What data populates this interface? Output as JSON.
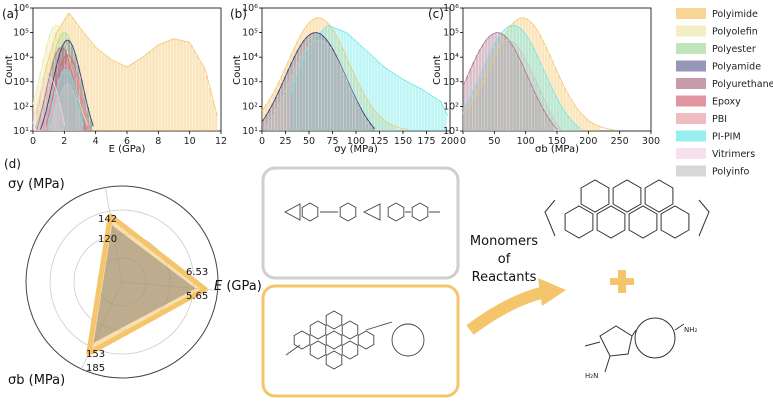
{
  "chart_data": [
    {
      "type": "histogram",
      "panel": "(a)",
      "xlabel": "E (GPa)",
      "ylabel": "Count",
      "xlim": [
        0,
        12
      ],
      "x_ticks": [
        "0",
        "2",
        "4",
        "6",
        "8",
        "10",
        "12"
      ],
      "ylim_log": [
        1,
        1000000
      ],
      "y_ticks": [
        "10¹",
        "10²",
        "10³",
        "10⁴",
        "10⁵",
        "10⁶"
      ],
      "scale": "log",
      "series": [
        {
          "name": "Polyimide",
          "peak": 2.3,
          "curve": [
            [
              0.2,
              1.5
            ],
            [
              0.8,
              3.5
            ],
            [
              1.5,
              5.0
            ],
            [
              2.3,
              5.8
            ],
            [
              3.0,
              5.2
            ],
            [
              4.0,
              4.4
            ],
            [
              5.0,
              3.9
            ],
            [
              6.0,
              3.6
            ],
            [
              7.0,
              4.0
            ],
            [
              8.0,
              4.5
            ],
            [
              9.0,
              4.75
            ],
            [
              10.0,
              4.6
            ],
            [
              11.0,
              3.5
            ],
            [
              11.8,
              1.5
            ]
          ]
        },
        {
          "name": "Polyolefin",
          "peak": 1.5
        },
        {
          "name": "Polyester",
          "peak": 2.0
        },
        {
          "name": "Polyamide",
          "peak": 2.2
        },
        {
          "name": "Polyurethane",
          "peak": 1.8
        },
        {
          "name": "Epoxy",
          "peak": 2.2
        },
        {
          "name": "PBI",
          "peak": 2.3
        },
        {
          "name": "PI-PIM",
          "peak": 2.1
        },
        {
          "name": "Vitrimers",
          "peak": 1.0
        },
        {
          "name": "Polyinfo",
          "peak": 2.2
        }
      ]
    },
    {
      "type": "histogram",
      "panel": "(b)",
      "xlabel": "σy (MPa)",
      "ylabel": "Count",
      "xlim": [
        0,
        200
      ],
      "x_ticks": [
        "0",
        "25",
        "50",
        "75",
        "100",
        "125",
        "150",
        "175",
        "200"
      ],
      "ylim_log": [
        1,
        1000000
      ],
      "y_ticks": [
        "10¹",
        "10²",
        "10³",
        "10⁴",
        "10⁵",
        "10⁶"
      ],
      "scale": "log",
      "series": [
        {
          "name": "Polyimide",
          "peak": 60
        },
        {
          "name": "PI-PIM",
          "peak": 80,
          "curve": [
            [
              30,
              2.5
            ],
            [
              50,
              4.5
            ],
            [
              70,
              5.3
            ],
            [
              90,
              5.0
            ],
            [
              110,
              4.3
            ],
            [
              130,
              3.6
            ],
            [
              150,
              3.1
            ],
            [
              170,
              2.7
            ],
            [
              190,
              2.2
            ],
            [
              198,
              1.6
            ]
          ]
        },
        {
          "name": "Polyamide",
          "peak": 57
        },
        {
          "name": "Polyinfo",
          "peak": 60
        }
      ]
    },
    {
      "type": "histogram",
      "panel": "(c)",
      "xlabel": "σb (MPa)",
      "ylabel": "Count",
      "xlim": [
        0,
        300
      ],
      "x_ticks": [
        "0",
        "50",
        "100",
        "150",
        "200",
        "250",
        "300"
      ],
      "ylim_log": [
        1,
        1000000
      ],
      "y_ticks": [
        "10¹",
        "10²",
        "10³",
        "10⁴",
        "10⁵",
        "10⁶"
      ],
      "scale": "log",
      "series": [
        {
          "name": "Polyimide",
          "peak": 95
        },
        {
          "name": "PI-PIM",
          "peak": 80
        },
        {
          "name": "Polyurethane",
          "peak": 55
        },
        {
          "name": "Polyinfo",
          "peak": 70
        }
      ]
    },
    {
      "type": "radar",
      "panel": "(d)",
      "axes": [
        {
          "key": "sigma_y",
          "label": "σy",
          "unit": "(MPa)",
          "value_outer": "142",
          "value_inner": "120"
        },
        {
          "key": "E",
          "label": "E",
          "unit": "(GPa)",
          "value_outer": "6.53",
          "value_inner": "5.65"
        },
        {
          "key": "sigma_b",
          "label": "σb",
          "unit": "(MPa)",
          "value_outer": "185",
          "value_inner": "153"
        }
      ],
      "series": [
        {
          "name": "outer",
          "values": [
            0.7,
            0.87,
            0.82
          ]
        },
        {
          "name": "inner",
          "values": [
            0.6,
            0.77,
            0.7
          ]
        }
      ]
    }
  ],
  "legend": [
    {
      "name": "Polyimide",
      "color": "#f5c56b"
    },
    {
      "name": "Polyolefin",
      "color": "#ece9a8"
    },
    {
      "name": "Polyester",
      "color": "#a8d9a0"
    },
    {
      "name": "Polyamide",
      "color": "#6a6a9a"
    },
    {
      "name": "Polyurethane",
      "color": "#b0708a"
    },
    {
      "name": "Epoxy",
      "color": "#d36a78"
    },
    {
      "name": "PBI",
      "color": "#e8a0a8"
    },
    {
      "name": "PI-PIM",
      "color": "#6ee8e8"
    },
    {
      "name": "Vitrimers",
      "color": "#f4d4e4"
    },
    {
      "name": "Polyinfo",
      "color": "#c6c6c6"
    }
  ],
  "diagram": {
    "monomers_label": [
      "Monomers",
      "of",
      "Reactants"
    ],
    "amine_label": "NH₂",
    "amine_label2": "H₂N"
  }
}
